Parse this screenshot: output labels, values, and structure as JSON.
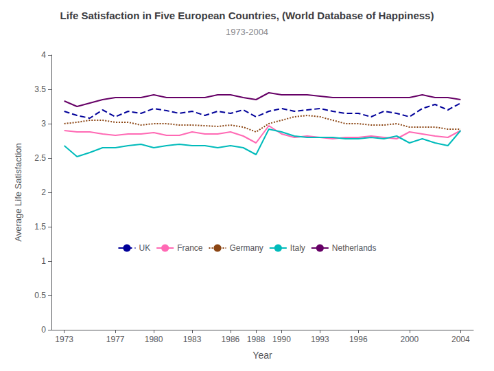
{
  "chart_data": {
    "type": "line",
    "title": "Life Satisfaction in Five European Countries, (World Database of Happiness)",
    "subtitle": "1973-2004",
    "xlabel": "Year",
    "ylabel": "Average Life Satisfaction",
    "x": [
      1973,
      1974,
      1975,
      1976,
      1977,
      1978,
      1979,
      1980,
      1981,
      1982,
      1983,
      1984,
      1985,
      1986,
      1987,
      1988,
      1989,
      1990,
      1991,
      1992,
      1993,
      1994,
      1995,
      1996,
      1997,
      1998,
      1999,
      2000,
      2001,
      2002,
      2003,
      2004
    ],
    "series": [
      {
        "name": "UK",
        "color": "#000099",
        "line_style": "dashed",
        "values": [
          3.18,
          3.12,
          3.08,
          3.2,
          3.1,
          3.18,
          3.15,
          3.22,
          3.19,
          3.15,
          3.18,
          3.12,
          3.18,
          3.15,
          3.2,
          3.1,
          3.18,
          3.22,
          3.18,
          3.2,
          3.22,
          3.18,
          3.15,
          3.15,
          3.1,
          3.18,
          3.15,
          3.1,
          3.22,
          3.28,
          3.2,
          3.3
        ]
      },
      {
        "name": "France",
        "color": "#FF69B4",
        "line_style": "solid",
        "values": [
          2.9,
          2.88,
          2.88,
          2.85,
          2.83,
          2.85,
          2.85,
          2.87,
          2.83,
          2.83,
          2.88,
          2.85,
          2.85,
          2.88,
          2.82,
          2.72,
          2.97,
          2.85,
          2.8,
          2.82,
          2.8,
          2.78,
          2.8,
          2.8,
          2.82,
          2.8,
          2.78,
          2.88,
          2.85,
          2.82,
          2.8,
          2.9
        ]
      },
      {
        "name": "Germany",
        "color": "#8B4513",
        "line_style": "dotted",
        "values": [
          3.0,
          3.02,
          3.05,
          3.05,
          3.02,
          3.02,
          2.98,
          3.0,
          3.0,
          2.98,
          2.98,
          2.97,
          2.96,
          2.98,
          2.95,
          2.88,
          3.0,
          3.05,
          3.1,
          3.12,
          3.1,
          3.05,
          3.0,
          3.0,
          2.98,
          2.98,
          3.0,
          2.95,
          2.95,
          2.95,
          2.92,
          2.92
        ]
      },
      {
        "name": "Italy",
        "color": "#00BBBB",
        "line_style": "solid",
        "values": [
          2.68,
          2.52,
          2.58,
          2.65,
          2.65,
          2.68,
          2.7,
          2.65,
          2.68,
          2.7,
          2.68,
          2.68,
          2.65,
          2.68,
          2.65,
          2.55,
          2.92,
          2.88,
          2.82,
          2.8,
          2.8,
          2.8,
          2.78,
          2.78,
          2.8,
          2.78,
          2.82,
          2.72,
          2.78,
          2.72,
          2.68,
          2.9
        ]
      },
      {
        "name": "Netherlands",
        "color": "#660066",
        "line_style": "solid",
        "values": [
          3.33,
          3.25,
          3.3,
          3.35,
          3.38,
          3.38,
          3.38,
          3.42,
          3.38,
          3.38,
          3.38,
          3.38,
          3.42,
          3.42,
          3.38,
          3.35,
          3.45,
          3.42,
          3.42,
          3.42,
          3.4,
          3.38,
          3.38,
          3.38,
          3.38,
          3.38,
          3.38,
          3.38,
          3.42,
          3.38,
          3.38,
          3.35
        ]
      }
    ],
    "xlim": [
      1972,
      2005
    ],
    "xticks": [
      1973,
      1977,
      1980,
      1983,
      1986,
      1988,
      1990,
      1993,
      1996,
      2000,
      2004
    ],
    "ylim": [
      0,
      4
    ],
    "yticks": [
      0,
      0.5,
      1,
      1.5,
      2,
      2.5,
      3,
      3.5,
      4
    ],
    "grid": false,
    "legend": "lower center"
  }
}
